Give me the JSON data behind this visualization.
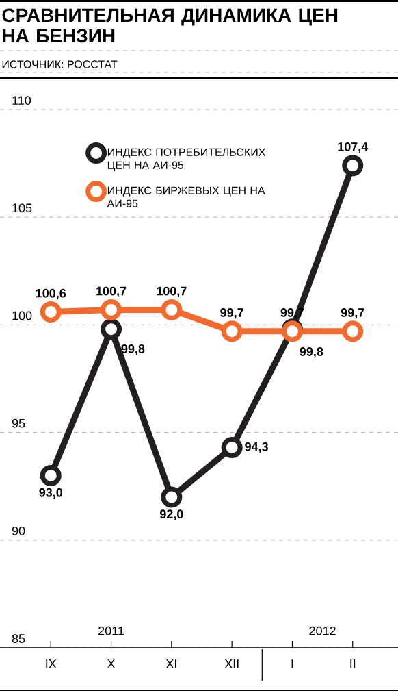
{
  "chart_data": {
    "type": "line",
    "title": "СРАВНИТЕЛЬНАЯ ДИНАМИКА ЦЕН НА БЕНЗИН",
    "annotations": [
      "ИСТОЧНИК: РОССТАТ",
      "2011",
      "2012"
    ],
    "categories": [
      "IX",
      "X",
      "XI",
      "XII",
      "I",
      "II"
    ],
    "series": [
      {
        "name": "ИНДЕКС ПОТРЕБИТЕЛЬСКИХ ЦЕН НА АИ-95",
        "color": "#231f20",
        "values": [
          93.0,
          99.8,
          92.0,
          94.3,
          99.8,
          107.4
        ],
        "value_labels": [
          "93,0",
          "99,8",
          "92,0",
          "94,3",
          "99,8",
          "107,4"
        ]
      },
      {
        "name": "ИНДЕКС БИРЖЕВЫХ ЦЕН НА АИ-95",
        "color": "#f26a2e",
        "values": [
          100.6,
          100.7,
          100.7,
          99.7,
          99.7,
          99.7
        ],
        "value_labels": [
          "100,6",
          "100,7",
          "100,7",
          "99,7",
          "99,7",
          "99,7"
        ]
      }
    ],
    "ylim": [
      85,
      110
    ],
    "yticks": [
      85,
      90,
      95,
      100,
      105,
      110
    ],
    "grid": "y",
    "legend": "top left",
    "marker": "circle",
    "line_style": "solid"
  }
}
